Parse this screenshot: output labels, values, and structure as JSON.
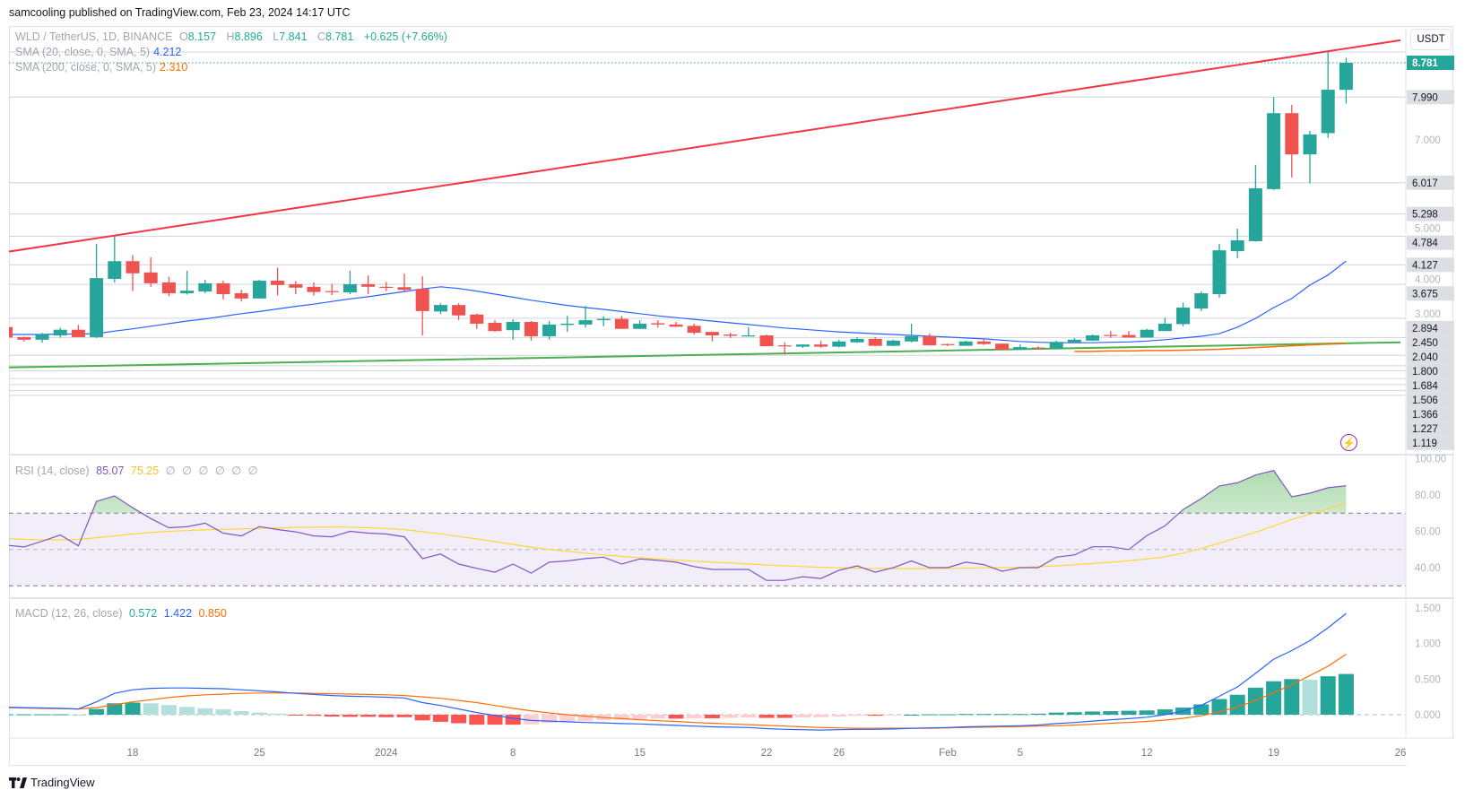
{
  "header": {
    "published": "samcooling published on TradingView.com, Feb 23, 2024 14:17 UTC"
  },
  "legend": {
    "symbol": "WLD / TetherUS, 1D, BINANCE",
    "o_label": "O",
    "o": "8.157",
    "h_label": "H",
    "h": "8.896",
    "l_label": "L",
    "l": "7.841",
    "c_label": "C",
    "c": "8.781",
    "change": "+0.625 (+7.66%)",
    "sma20_label": "SMA (20, close, 0, SMA, 5)",
    "sma20_value": "4.212",
    "sma200_label": "SMA (200, close, 0, SMA, 5)",
    "sma200_value": "2.310",
    "rsi_label": "RSI (14, close)",
    "rsi_value": "85.07",
    "rsi_ma_value": "75.25",
    "rsi_empty": [
      "∅",
      "∅",
      "∅",
      "∅",
      "∅",
      "∅"
    ],
    "macd_label": "MACD (12, 26, close)",
    "macd_hist": "0.572",
    "macd_value": "1.422",
    "macd_signal": "0.850"
  },
  "currency_button": "USDT",
  "footer": {
    "logo_text": "TradingView",
    "logo_icon": "tradingview-logo-icon"
  },
  "alert_icon": "lightning-icon",
  "colors": {
    "up": "#26a69a",
    "down": "#ef5350",
    "sma20": "#2962ff",
    "sma200": "#ff6d00",
    "rsi": "#7e57c2",
    "rsi_ma": "#fdd835",
    "macd": "#2962ff",
    "signal": "#ff6d00",
    "trend_red": "#f23645",
    "trend_green": "#4caf50",
    "level": "#d1d4dc"
  },
  "chart_data": {
    "type": "candlestick",
    "symbol": "WLD / TetherUS",
    "interval": "1D",
    "current_price": "8.781",
    "price_axis_ticks": [
      "7.000",
      "5.000",
      "4.000",
      "3.000"
    ],
    "price_level_labels": [
      "7.990",
      "6.017",
      "5.298",
      "4.784",
      "4.127",
      "3.675",
      "2.894",
      "2.450",
      "2.040",
      "1.800",
      "1.684",
      "1.506",
      "1.366",
      "1.227",
      "1.119"
    ],
    "time_ticks": [
      {
        "label": "18",
        "date": "2023-12-18"
      },
      {
        "label": "25",
        "date": "2023-12-25"
      },
      {
        "label": "2024",
        "date": "2024-01-01"
      },
      {
        "label": "8",
        "date": "2024-01-08"
      },
      {
        "label": "15",
        "date": "2024-01-15"
      },
      {
        "label": "22",
        "date": "2024-01-22"
      },
      {
        "label": "26",
        "date": "2024-01-26"
      },
      {
        "label": "Feb",
        "date": "2024-02-01"
      },
      {
        "label": "5",
        "date": "2024-02-05"
      },
      {
        "label": "12",
        "date": "2024-02-12"
      },
      {
        "label": "19",
        "date": "2024-02-19"
      },
      {
        "label": "26",
        "date": "2024-02-26"
      }
    ],
    "trendlines": [
      {
        "color": "#f23645",
        "start": {
          "date": "2023-12-11",
          "price": 4.42
        },
        "end": {
          "date": "2024-02-26",
          "price": 9.3
        }
      },
      {
        "color": "#4caf50",
        "start": {
          "date": "2023-12-11",
          "price": 1.76
        },
        "end": {
          "date": "2024-02-26",
          "price": 2.34
        }
      }
    ],
    "candles": [
      {
        "d": "2023-12-11",
        "o": 2.69,
        "h": 2.72,
        "l": 2.44,
        "c": 2.45
      },
      {
        "d": "2023-12-12",
        "o": 2.46,
        "h": 2.47,
        "l": 2.36,
        "c": 2.4
      },
      {
        "d": "2023-12-13",
        "o": 2.4,
        "h": 2.56,
        "l": 2.33,
        "c": 2.52
      },
      {
        "d": "2023-12-14",
        "o": 2.5,
        "h": 2.68,
        "l": 2.45,
        "c": 2.63
      },
      {
        "d": "2023-12-15",
        "o": 2.63,
        "h": 2.74,
        "l": 2.46,
        "c": 2.46
      },
      {
        "d": "2023-12-16",
        "o": 2.46,
        "h": 4.61,
        "l": 2.44,
        "c": 3.82
      },
      {
        "d": "2023-12-17",
        "o": 3.8,
        "h": 4.79,
        "l": 3.72,
        "c": 4.21
      },
      {
        "d": "2023-12-18",
        "o": 4.21,
        "h": 4.35,
        "l": 3.52,
        "c": 3.93
      },
      {
        "d": "2023-12-19",
        "o": 3.95,
        "h": 4.3,
        "l": 3.62,
        "c": 3.7
      },
      {
        "d": "2023-12-20",
        "o": 3.72,
        "h": 3.85,
        "l": 3.4,
        "c": 3.47
      },
      {
        "d": "2023-12-21",
        "o": 3.47,
        "h": 3.99,
        "l": 3.44,
        "c": 3.53
      },
      {
        "d": "2023-12-22",
        "o": 3.51,
        "h": 3.78,
        "l": 3.47,
        "c": 3.7
      },
      {
        "d": "2023-12-23",
        "o": 3.7,
        "h": 3.76,
        "l": 3.33,
        "c": 3.45
      },
      {
        "d": "2023-12-24",
        "o": 3.47,
        "h": 3.55,
        "l": 3.28,
        "c": 3.35
      },
      {
        "d": "2023-12-25",
        "o": 3.35,
        "h": 3.78,
        "l": 3.35,
        "c": 3.76
      },
      {
        "d": "2023-12-26",
        "o": 3.76,
        "h": 4.06,
        "l": 3.42,
        "c": 3.66
      },
      {
        "d": "2023-12-27",
        "o": 3.68,
        "h": 3.75,
        "l": 3.45,
        "c": 3.6
      },
      {
        "d": "2023-12-28",
        "o": 3.62,
        "h": 3.72,
        "l": 3.42,
        "c": 3.5
      },
      {
        "d": "2023-12-29",
        "o": 3.52,
        "h": 3.69,
        "l": 3.43,
        "c": 3.5
      },
      {
        "d": "2023-12-30",
        "o": 3.49,
        "h": 3.99,
        "l": 3.45,
        "c": 3.68
      },
      {
        "d": "2023-12-31",
        "o": 3.68,
        "h": 3.88,
        "l": 3.45,
        "c": 3.62
      },
      {
        "d": "2024-01-01",
        "o": 3.62,
        "h": 3.73,
        "l": 3.52,
        "c": 3.6
      },
      {
        "d": "2024-01-02",
        "o": 3.61,
        "h": 3.92,
        "l": 3.51,
        "c": 3.55
      },
      {
        "d": "2024-01-03",
        "o": 3.57,
        "h": 3.86,
        "l": 2.5,
        "c": 3.06
      },
      {
        "d": "2024-01-04",
        "o": 3.05,
        "h": 3.24,
        "l": 2.99,
        "c": 3.2
      },
      {
        "d": "2024-01-05",
        "o": 3.2,
        "h": 3.24,
        "l": 2.85,
        "c": 2.96
      },
      {
        "d": "2024-01-06",
        "o": 2.98,
        "h": 3.0,
        "l": 2.65,
        "c": 2.77
      },
      {
        "d": "2024-01-07",
        "o": 2.79,
        "h": 2.85,
        "l": 2.58,
        "c": 2.6
      },
      {
        "d": "2024-01-08",
        "o": 2.62,
        "h": 2.87,
        "l": 2.4,
        "c": 2.81
      },
      {
        "d": "2024-01-09",
        "o": 2.81,
        "h": 2.83,
        "l": 2.38,
        "c": 2.48
      },
      {
        "d": "2024-01-10",
        "o": 2.48,
        "h": 2.83,
        "l": 2.4,
        "c": 2.75
      },
      {
        "d": "2024-01-11",
        "o": 2.74,
        "h": 2.95,
        "l": 2.58,
        "c": 2.77
      },
      {
        "d": "2024-01-12",
        "o": 2.75,
        "h": 3.18,
        "l": 2.68,
        "c": 2.85
      },
      {
        "d": "2024-01-13",
        "o": 2.85,
        "h": 2.94,
        "l": 2.71,
        "c": 2.88
      },
      {
        "d": "2024-01-14",
        "o": 2.88,
        "h": 2.95,
        "l": 2.65,
        "c": 2.65
      },
      {
        "d": "2024-01-15",
        "o": 2.65,
        "h": 2.85,
        "l": 2.65,
        "c": 2.77
      },
      {
        "d": "2024-01-16",
        "o": 2.78,
        "h": 2.85,
        "l": 2.68,
        "c": 2.75
      },
      {
        "d": "2024-01-17",
        "o": 2.75,
        "h": 2.81,
        "l": 2.69,
        "c": 2.7
      },
      {
        "d": "2024-01-18",
        "o": 2.72,
        "h": 2.77,
        "l": 2.52,
        "c": 2.56
      },
      {
        "d": "2024-01-19",
        "o": 2.58,
        "h": 2.58,
        "l": 2.36,
        "c": 2.5
      },
      {
        "d": "2024-01-20",
        "o": 2.52,
        "h": 2.56,
        "l": 2.44,
        "c": 2.49
      },
      {
        "d": "2024-01-21",
        "o": 2.48,
        "h": 2.69,
        "l": 2.48,
        "c": 2.5
      },
      {
        "d": "2024-01-22",
        "o": 2.5,
        "h": 2.52,
        "l": 2.25,
        "c": 2.25
      },
      {
        "d": "2024-01-23",
        "o": 2.27,
        "h": 2.34,
        "l": 2.06,
        "c": 2.25
      },
      {
        "d": "2024-01-24",
        "o": 2.24,
        "h": 2.29,
        "l": 2.21,
        "c": 2.29
      },
      {
        "d": "2024-01-25",
        "o": 2.29,
        "h": 2.37,
        "l": 2.21,
        "c": 2.24
      },
      {
        "d": "2024-01-26",
        "o": 2.24,
        "h": 2.4,
        "l": 2.22,
        "c": 2.36
      },
      {
        "d": "2024-01-27",
        "o": 2.34,
        "h": 2.46,
        "l": 2.33,
        "c": 2.42
      },
      {
        "d": "2024-01-28",
        "o": 2.42,
        "h": 2.46,
        "l": 2.25,
        "c": 2.26
      },
      {
        "d": "2024-01-29",
        "o": 2.26,
        "h": 2.4,
        "l": 2.25,
        "c": 2.38
      },
      {
        "d": "2024-01-30",
        "o": 2.36,
        "h": 2.77,
        "l": 2.34,
        "c": 2.48
      },
      {
        "d": "2024-01-31",
        "o": 2.48,
        "h": 2.54,
        "l": 2.27,
        "c": 2.27
      },
      {
        "d": "2024-02-01",
        "o": 2.3,
        "h": 2.31,
        "l": 2.25,
        "c": 2.28
      },
      {
        "d": "2024-02-02",
        "o": 2.26,
        "h": 2.38,
        "l": 2.26,
        "c": 2.36
      },
      {
        "d": "2024-02-03",
        "o": 2.36,
        "h": 2.42,
        "l": 2.28,
        "c": 2.3
      },
      {
        "d": "2024-02-04",
        "o": 2.31,
        "h": 2.31,
        "l": 2.17,
        "c": 2.17
      },
      {
        "d": "2024-02-05",
        "o": 2.17,
        "h": 2.29,
        "l": 2.17,
        "c": 2.23
      },
      {
        "d": "2024-02-06",
        "o": 2.22,
        "h": 2.25,
        "l": 2.19,
        "c": 2.2
      },
      {
        "d": "2024-02-07",
        "o": 2.2,
        "h": 2.38,
        "l": 2.2,
        "c": 2.35
      },
      {
        "d": "2024-02-08",
        "o": 2.34,
        "h": 2.44,
        "l": 2.33,
        "c": 2.4
      },
      {
        "d": "2024-02-09",
        "o": 2.38,
        "h": 2.52,
        "l": 2.37,
        "c": 2.5
      },
      {
        "d": "2024-02-10",
        "o": 2.51,
        "h": 2.6,
        "l": 2.44,
        "c": 2.49
      },
      {
        "d": "2024-02-11",
        "o": 2.51,
        "h": 2.6,
        "l": 2.45,
        "c": 2.45
      },
      {
        "d": "2024-02-12",
        "o": 2.45,
        "h": 2.65,
        "l": 2.45,
        "c": 2.63
      },
      {
        "d": "2024-02-13",
        "o": 2.6,
        "h": 2.91,
        "l": 2.6,
        "c": 2.77
      },
      {
        "d": "2024-02-14",
        "o": 2.76,
        "h": 3.25,
        "l": 2.71,
        "c": 3.14
      },
      {
        "d": "2024-02-15",
        "o": 3.12,
        "h": 3.51,
        "l": 3.06,
        "c": 3.47
      },
      {
        "d": "2024-02-16",
        "o": 3.45,
        "h": 4.61,
        "l": 3.37,
        "c": 4.46
      },
      {
        "d": "2024-02-17",
        "o": 4.44,
        "h": 4.96,
        "l": 4.28,
        "c": 4.69
      },
      {
        "d": "2024-02-18",
        "o": 4.67,
        "h": 6.43,
        "l": 4.66,
        "c": 5.89
      },
      {
        "d": "2024-02-19",
        "o": 5.87,
        "h": 7.99,
        "l": 5.85,
        "c": 7.62
      },
      {
        "d": "2024-02-20",
        "o": 7.62,
        "h": 7.81,
        "l": 6.14,
        "c": 6.67
      },
      {
        "d": "2024-02-21",
        "o": 6.67,
        "h": 7.21,
        "l": 6.0,
        "c": 7.13
      },
      {
        "d": "2024-02-22",
        "o": 7.16,
        "h": 9.03,
        "l": 7.05,
        "c": 8.16
      },
      {
        "d": "2024-02-23",
        "o": 8.157,
        "h": 8.896,
        "l": 7.841,
        "c": 8.781
      }
    ],
    "sma20": [
      2.52,
      2.52,
      2.52,
      2.53,
      2.53,
      2.54,
      2.6,
      2.65,
      2.71,
      2.77,
      2.83,
      2.88,
      2.94,
      3.0,
      3.05,
      3.11,
      3.17,
      3.22,
      3.28,
      3.34,
      3.39,
      3.45,
      3.51,
      3.57,
      3.62,
      3.58,
      3.52,
      3.45,
      3.38,
      3.31,
      3.25,
      3.19,
      3.14,
      3.1,
      3.05,
      3.0,
      2.95,
      2.91,
      2.87,
      2.83,
      2.79,
      2.75,
      2.71,
      2.67,
      2.64,
      2.61,
      2.58,
      2.56,
      2.54,
      2.52,
      2.5,
      2.48,
      2.46,
      2.44,
      2.42,
      2.39,
      2.36,
      2.34,
      2.33,
      2.33,
      2.33,
      2.34,
      2.35,
      2.37,
      2.4,
      2.44,
      2.48,
      2.54,
      2.69,
      2.89,
      3.14,
      3.35,
      3.66,
      3.89,
      4.212
    ],
    "sma200": [
      null,
      null,
      null,
      null,
      null,
      null,
      null,
      null,
      null,
      null,
      null,
      null,
      null,
      null,
      null,
      null,
      null,
      null,
      null,
      null,
      null,
      null,
      null,
      null,
      null,
      null,
      null,
      null,
      null,
      null,
      null,
      null,
      null,
      null,
      null,
      null,
      null,
      null,
      null,
      null,
      null,
      null,
      null,
      null,
      null,
      null,
      null,
      null,
      null,
      null,
      null,
      null,
      null,
      null,
      null,
      null,
      null,
      null,
      null,
      2.13,
      2.13,
      2.14,
      2.14,
      2.15,
      2.15,
      2.16,
      2.17,
      2.18,
      2.2,
      2.22,
      2.24,
      2.26,
      2.28,
      2.3,
      2.31
    ],
    "rsi": {
      "ticks": [
        "100.00",
        "80.00",
        "60.00",
        "40.00"
      ],
      "bands": [
        70,
        50,
        30
      ],
      "values": [
        52.4,
        51.4,
        54.5,
        58,
        52,
        76.5,
        79.5,
        73,
        67,
        62,
        62.5,
        64.5,
        59,
        57.5,
        62.6,
        61,
        59.7,
        57.5,
        57,
        60,
        59,
        58.5,
        57,
        45,
        47.5,
        42,
        39.6,
        37.5,
        42,
        37,
        43,
        43.7,
        45,
        45.8,
        42,
        44.8,
        44,
        43,
        40.6,
        39,
        39,
        39,
        33,
        33,
        35,
        34,
        38.5,
        41,
        37.5,
        40,
        43.7,
        40,
        40,
        43,
        41.7,
        38,
        40,
        40,
        45.8,
        47,
        51.5,
        51.5,
        50,
        57.7,
        63,
        72,
        78,
        85,
        86.7,
        91,
        93.5,
        79,
        81,
        84,
        85.07
      ],
      "ma": [
        56,
        55.6,
        55.3,
        55.3,
        55.5,
        56.5,
        57.5,
        58.5,
        59.3,
        60,
        60.4,
        60.8,
        61.1,
        61.3,
        61.6,
        61.9,
        62.1,
        62.3,
        62.4,
        62.3,
        62.0,
        61.6,
        61.0,
        59.8,
        58.6,
        57.2,
        55.8,
        54.3,
        52.8,
        51.3,
        50.0,
        49.0,
        48.0,
        47.0,
        46.2,
        45.5,
        44.8,
        44.2,
        43.6,
        43.0,
        42.5,
        42.0,
        41.5,
        41.0,
        40.6,
        40.2,
        39.9,
        39.7,
        39.6,
        39.5,
        39.5,
        39.5,
        39.6,
        39.7,
        39.9,
        40.0,
        40.2,
        40.5,
        41.0,
        41.6,
        42.3,
        43.0,
        43.8,
        44.8,
        46.0,
        48.0,
        50.5,
        53.5,
        56.5,
        59.5,
        63,
        66.5,
        69.5,
        72.5,
        75.25
      ]
    },
    "macd": {
      "ticks": [
        "1.500",
        "1.000",
        "0.500",
        "0.000"
      ],
      "macd": [
        0.105,
        0.1,
        0.095,
        0.09,
        0.08,
        0.18,
        0.3,
        0.35,
        0.37,
        0.375,
        0.375,
        0.37,
        0.365,
        0.35,
        0.335,
        0.32,
        0.3,
        0.285,
        0.27,
        0.26,
        0.255,
        0.245,
        0.235,
        0.17,
        0.13,
        0.08,
        0.03,
        -0.01,
        -0.05,
        -0.08,
        -0.09,
        -0.1,
        -0.11,
        -0.115,
        -0.125,
        -0.13,
        -0.14,
        -0.15,
        -0.16,
        -0.17,
        -0.175,
        -0.18,
        -0.195,
        -0.205,
        -0.21,
        -0.215,
        -0.21,
        -0.205,
        -0.205,
        -0.2,
        -0.19,
        -0.185,
        -0.18,
        -0.17,
        -0.165,
        -0.16,
        -0.155,
        -0.145,
        -0.125,
        -0.11,
        -0.09,
        -0.07,
        -0.055,
        -0.035,
        0.0,
        0.05,
        0.13,
        0.26,
        0.39,
        0.58,
        0.78,
        0.9,
        1.04,
        1.22,
        1.422
      ],
      "signal": [
        0.1,
        0.095,
        0.09,
        0.085,
        0.08,
        0.1,
        0.14,
        0.18,
        0.21,
        0.24,
        0.265,
        0.28,
        0.29,
        0.3,
        0.305,
        0.305,
        0.305,
        0.3,
        0.295,
        0.29,
        0.285,
        0.28,
        0.27,
        0.25,
        0.23,
        0.2,
        0.17,
        0.13,
        0.09,
        0.055,
        0.025,
        0.0,
        -0.02,
        -0.04,
        -0.055,
        -0.07,
        -0.085,
        -0.095,
        -0.11,
        -0.12,
        -0.13,
        -0.14,
        -0.15,
        -0.16,
        -0.17,
        -0.18,
        -0.185,
        -0.19,
        -0.19,
        -0.19,
        -0.19,
        -0.19,
        -0.185,
        -0.18,
        -0.175,
        -0.17,
        -0.165,
        -0.16,
        -0.155,
        -0.145,
        -0.135,
        -0.12,
        -0.11,
        -0.095,
        -0.075,
        -0.05,
        -0.015,
        0.04,
        0.11,
        0.2,
        0.31,
        0.42,
        0.55,
        0.68,
        0.85
      ],
      "histogram": [
        0.005,
        0.005,
        0.005,
        0.005,
        0.0,
        0.08,
        0.16,
        0.17,
        0.16,
        0.135,
        0.11,
        0.09,
        0.075,
        0.05,
        0.03,
        0.015,
        -0.005,
        -0.015,
        -0.025,
        -0.03,
        -0.03,
        -0.035,
        -0.035,
        -0.08,
        -0.1,
        -0.12,
        -0.14,
        -0.14,
        -0.14,
        -0.135,
        -0.115,
        -0.1,
        -0.09,
        -0.075,
        -0.07,
        -0.06,
        -0.055,
        -0.055,
        -0.05,
        -0.05,
        -0.045,
        -0.04,
        -0.045,
        -0.045,
        -0.04,
        -0.035,
        -0.025,
        -0.015,
        -0.015,
        -0.01,
        0.0,
        0.005,
        0.005,
        0.01,
        0.01,
        0.01,
        0.01,
        0.015,
        0.03,
        0.035,
        0.045,
        0.05,
        0.055,
        0.06,
        0.075,
        0.1,
        0.145,
        0.22,
        0.28,
        0.38,
        0.47,
        0.5,
        0.49,
        0.54,
        0.572
      ]
    }
  }
}
